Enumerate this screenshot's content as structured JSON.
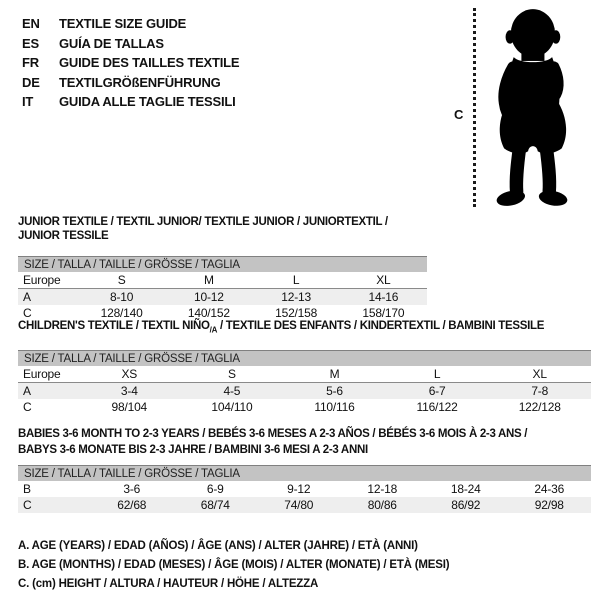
{
  "languages": [
    {
      "code": "EN",
      "title": "TEXTILE SIZE GUIDE"
    },
    {
      "code": "ES",
      "title": "GUÍA DE TALLAS"
    },
    {
      "code": "FR",
      "title": "GUIDE DES TAILLES TEXTILE"
    },
    {
      "code": "DE",
      "title": "TEXTILGRÖßENFÜHRUNG"
    },
    {
      "code": "IT",
      "title": "GUIDA ALLE TAGLIE TESSILI"
    }
  ],
  "figure": {
    "measure_label": "C",
    "silhouette": "toddler-standing"
  },
  "sections": [
    {
      "title": "JUNIOR TEXTILE / TEXTIL JUNIOR/ TEXTILE JUNIOR / JUNIORTEXTIL / JUNIOR TESSILE",
      "size_header": "SIZE / TALLA / TAILLE / GRÖSSE / TAGLIA",
      "rows": [
        [
          "Europe",
          "S",
          "M",
          "L",
          "XL"
        ],
        [
          "A",
          "8-10",
          "10-12",
          "12-13",
          "14-16"
        ],
        [
          "C",
          "128/140",
          "140/152",
          "152/158",
          "158/170"
        ]
      ]
    },
    {
      "title_pre": "CHILDREN'S TEXTILE / TEXTIL NIÑO",
      "title_sub": "/A",
      "title_post": " / TEXTILE DES ENFANTS / KINDERTEXTIL / BAMBINI TESSILE",
      "size_header": "SIZE / TALLA / TAILLE / GRÖSSE / TAGLIA",
      "rows": [
        [
          "Europe",
          "XS",
          "S",
          "M",
          "L",
          "XL"
        ],
        [
          "A",
          "3-4",
          "4-5",
          "5-6",
          "6-7",
          "7-8"
        ],
        [
          "C",
          "98/104",
          "104/110",
          "110/116",
          "116/122",
          "122/128"
        ]
      ]
    },
    {
      "title_line1": "BABIES 3-6 MONTH TO 2-3 YEARS / BEBÉS 3-6 MESES A 2-3 AÑOS / BÉBÉS 3-6 MOIS À 2-3 ANS /",
      "title_line2": "BABYS 3-6 MONATE BIS 2-3 JAHRE / BAMBINI 3-6 MESI A 2-3 ANNI",
      "size_header": "SIZE / TALLA / TAILLE / GRÖSSE / TAGLIA",
      "rows": [
        [
          "B",
          "3-6",
          "6-9",
          "9-12",
          "12-18",
          "18-24",
          "24-36"
        ],
        [
          "C",
          "62/68",
          "68/74",
          "74/80",
          "80/86",
          "86/92",
          "92/98"
        ]
      ]
    }
  ],
  "notes": [
    "A. AGE (YEARS) / EDAD (AÑOS) / ÂGE (ANS) / ALTER (JAHRE) / ETÀ (ANNI)",
    "B. AGE (MONTHS) / EDAD (MESES) / ÂGE (MOIS) / ALTER (MONATE) / ETÀ (MESI)",
    "C. (cm) HEIGHT / ALTURA / HAUTEUR / HÖHE / ALTEZZA"
  ],
  "colors": {
    "size_bar_bg": "#c3c3c3",
    "shaded_row_bg": "#eeeeee",
    "text": "#111111"
  }
}
